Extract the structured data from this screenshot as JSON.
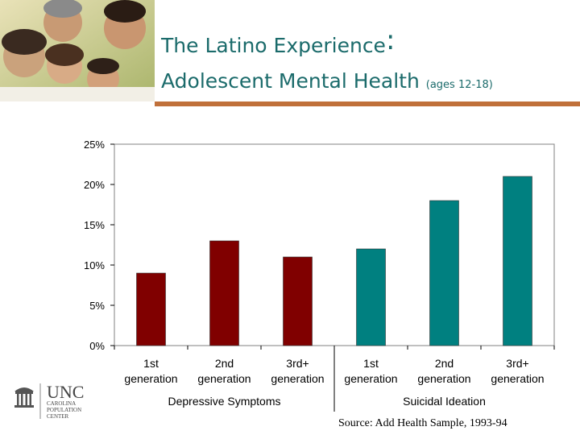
{
  "header": {
    "title_line1": "The Latino Experience",
    "title_colon": ":",
    "title_line2": "Adolescent Mental Health",
    "title_qualifier": "(ages 12-18)"
  },
  "logo": {
    "icon": "old-well-icon",
    "name": "UNC",
    "line1": "CAROLINA",
    "line2": "POPULATION",
    "line3": "CENTER"
  },
  "source": "Source: Add Health Sample, 1993-94",
  "colors": {
    "title": "#1b6b6b",
    "accent_rule": "#c0703a",
    "depressive": "#800000",
    "suicidal": "#008080"
  },
  "chart_data": {
    "type": "bar",
    "ylim": [
      0,
      25
    ],
    "y_ticks": [
      "0%",
      "5%",
      "10%",
      "15%",
      "20%",
      "25%"
    ],
    "categories": [
      "1st generation",
      "2nd generation",
      "3rd+ generation",
      "1st generation",
      "2nd generation",
      "3rd+ generation"
    ],
    "groups": [
      {
        "name": "Depressive Symptoms",
        "color": "#800000",
        "values": [
          9,
          13,
          11
        ]
      },
      {
        "name": "Suicidal Ideation",
        "color": "#008080",
        "values": [
          12,
          18,
          21
        ]
      }
    ],
    "grid": false
  }
}
